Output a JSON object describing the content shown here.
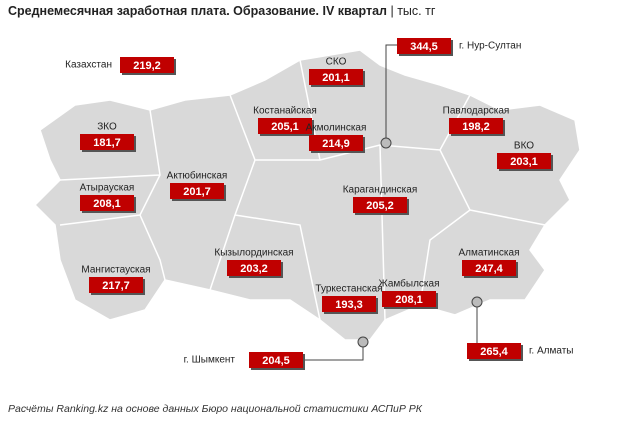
{
  "header": {
    "title": "Среднемесячная заработная плата. Образование. IV квартал",
    "unit": "| тыс. тг"
  },
  "regions": [
    {
      "name": "Казахстан",
      "value": "219,2"
    },
    {
      "name": "СКО",
      "value": "201,1"
    },
    {
      "name": "г. Нур-Султан",
      "value": "344,5"
    },
    {
      "name": "Костанайская",
      "value": "205,1"
    },
    {
      "name": "Павлодарская",
      "value": "198,2"
    },
    {
      "name": "Акмолинская",
      "value": "214,9"
    },
    {
      "name": "ЗКО",
      "value": "181,7"
    },
    {
      "name": "ВКО",
      "value": "203,1"
    },
    {
      "name": "Атырауская",
      "value": "208,1"
    },
    {
      "name": "Актюбинская",
      "value": "201,7"
    },
    {
      "name": "Карагандинская",
      "value": "205,2"
    },
    {
      "name": "Алматинская",
      "value": "247,4"
    },
    {
      "name": "Кызылординская",
      "value": "203,2"
    },
    {
      "name": "Мангистауская",
      "value": "217,7"
    },
    {
      "name": "Туркестанская",
      "value": "193,3"
    },
    {
      "name": "Жамбылская",
      "value": "208,1"
    },
    {
      "name": "г. Шымкент",
      "value": "204,5"
    },
    {
      "name": "г. Алматы",
      "value": "265,4"
    }
  ],
  "footer": "Расчёты Ranking.kz на основе данных Бюро национальной статистики АСПиР РК"
}
